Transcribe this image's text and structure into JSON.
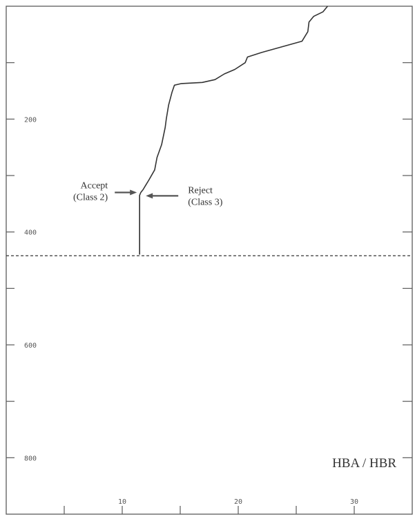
{
  "chart_data": {
    "type": "line",
    "title": "",
    "xlabel": "",
    "ylabel": "",
    "xlim": [
      0,
      35
    ],
    "ylim": [
      0,
      900
    ],
    "y_inverted": true,
    "grid": false,
    "corner_label": "HBA / HBR",
    "x_ticks": [
      {
        "value": 5,
        "label": ""
      },
      {
        "value": 10,
        "label": "10"
      },
      {
        "value": 15,
        "label": ""
      },
      {
        "value": 20,
        "label": "20"
      },
      {
        "value": 25,
        "label": ""
      },
      {
        "value": 30,
        "label": "30"
      }
    ],
    "y_ticks": [
      {
        "value": 100,
        "label": ""
      },
      {
        "value": 200,
        "label": "200"
      },
      {
        "value": 300,
        "label": ""
      },
      {
        "value": 400,
        "label": "400"
      },
      {
        "value": 500,
        "label": ""
      },
      {
        "value": 600,
        "label": "600"
      },
      {
        "value": 700,
        "label": ""
      },
      {
        "value": 800,
        "label": "800"
      }
    ],
    "series": [
      {
        "points": [
          [
            27.7,
            0
          ],
          [
            27.3,
            10
          ],
          [
            26.5,
            18
          ],
          [
            26.1,
            28
          ],
          [
            26.0,
            45
          ],
          [
            25.5,
            62
          ],
          [
            22.0,
            82
          ],
          [
            20.8,
            90
          ],
          [
            20.6,
            100
          ],
          [
            19.7,
            112
          ],
          [
            18.8,
            120
          ],
          [
            18.0,
            130
          ],
          [
            16.9,
            135
          ],
          [
            15.1,
            137
          ],
          [
            14.5,
            140
          ],
          [
            14.3,
            152
          ],
          [
            14.0,
            175
          ],
          [
            13.8,
            200
          ],
          [
            13.7,
            215
          ],
          [
            13.4,
            245
          ],
          [
            13.0,
            268
          ],
          [
            12.8,
            290
          ],
          [
            12.3,
            308
          ],
          [
            12.0,
            318
          ],
          [
            11.8,
            325
          ],
          [
            11.6,
            330
          ],
          [
            11.5,
            335
          ],
          [
            11.5,
            440
          ]
        ]
      }
    ],
    "cutoff_y": 442,
    "annotations": [
      {
        "lines": [
          "Accept",
          "(Class 2)"
        ],
        "x": 11.5,
        "y": 330,
        "side": "left"
      },
      {
        "lines": [
          "Reject",
          "(Class 3)"
        ],
        "x": 11.5,
        "y": 336,
        "side": "right"
      }
    ]
  }
}
